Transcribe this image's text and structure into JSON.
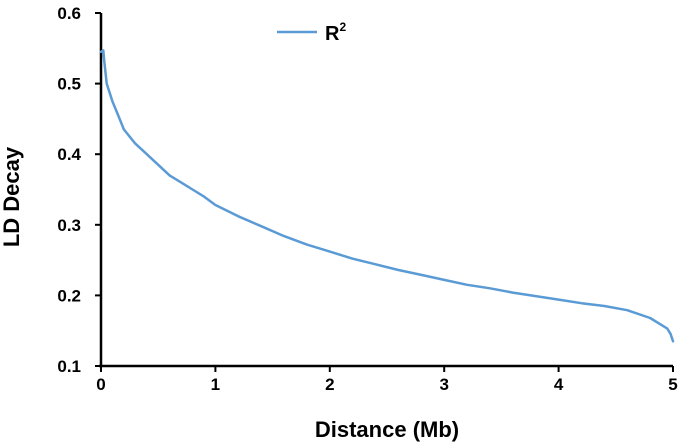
{
  "chart_data": {
    "type": "line",
    "title": "",
    "xlabel": "Distance (Mb)",
    "ylabel": "LD Decay",
    "xlim": [
      0,
      5
    ],
    "ylim": [
      0.1,
      0.6
    ],
    "x_ticks": [
      "0",
      "1",
      "2",
      "3",
      "4",
      "5"
    ],
    "y_ticks": [
      "0.1",
      "0.2",
      "0.3",
      "0.4",
      "0.5",
      "0.6"
    ],
    "grid": false,
    "legend": {
      "position": "top-center",
      "label": "R",
      "superscript": "2"
    },
    "series": [
      {
        "name": "R2",
        "color": "#5b9bd5",
        "x": [
          0.0,
          0.02,
          0.03,
          0.05,
          0.1,
          0.15,
          0.2,
          0.3,
          0.4,
          0.5,
          0.6,
          0.7,
          0.8,
          0.9,
          1.0,
          1.2,
          1.4,
          1.6,
          1.8,
          2.0,
          2.2,
          2.4,
          2.6,
          2.8,
          3.0,
          3.2,
          3.4,
          3.6,
          3.8,
          4.0,
          4.2,
          4.4,
          4.6,
          4.8,
          4.9,
          4.95,
          4.98,
          5.0
        ],
        "y": [
          0.545,
          0.547,
          0.53,
          0.5,
          0.475,
          0.455,
          0.435,
          0.415,
          0.4,
          0.385,
          0.37,
          0.36,
          0.35,
          0.34,
          0.328,
          0.312,
          0.298,
          0.284,
          0.272,
          0.262,
          0.252,
          0.244,
          0.236,
          0.229,
          0.222,
          0.215,
          0.21,
          0.204,
          0.199,
          0.194,
          0.189,
          0.185,
          0.179,
          0.168,
          0.158,
          0.153,
          0.145,
          0.135
        ]
      }
    ]
  }
}
